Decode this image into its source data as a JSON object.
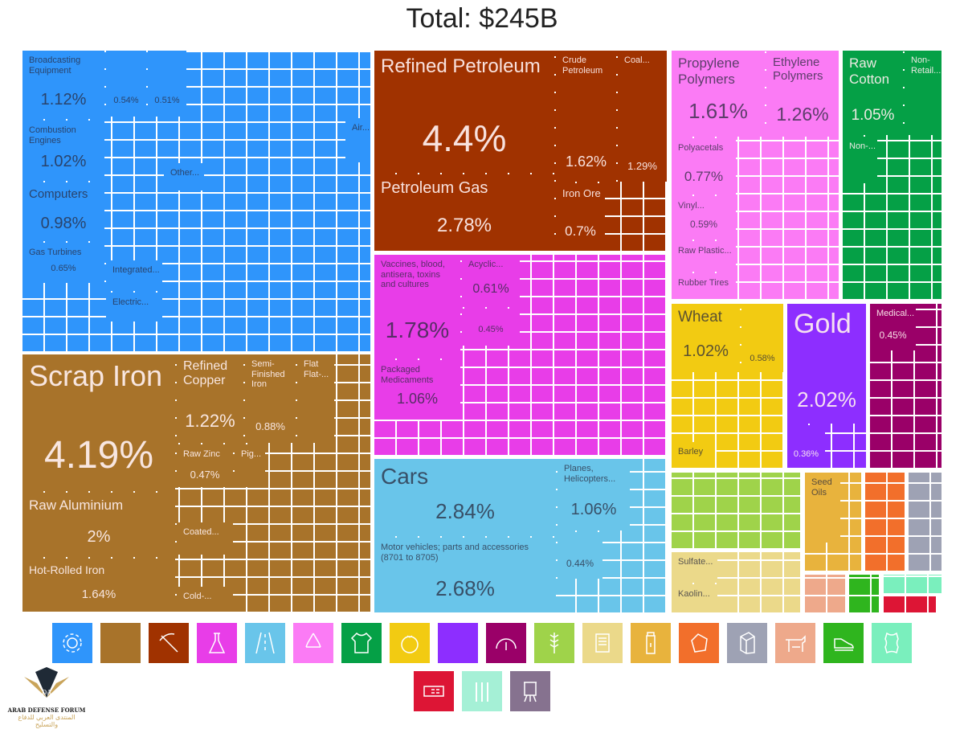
{
  "title": "Total: $245B",
  "chart_data": {
    "type": "treemap",
    "title": "Total: $245B",
    "sectors": [
      {
        "name": "machines",
        "color": "#2f95fb",
        "text": "dark",
        "tiles": [
          {
            "label": "Broadcasting Equipment",
            "pct": "1.12%"
          },
          {
            "label": "Combustion Engines",
            "pct": "1.02%"
          },
          {
            "label": "Computers",
            "pct": "0.98%"
          },
          {
            "label": "Gas Turbines",
            "pct": "0.65%"
          },
          {
            "label": "",
            "pct": "0.54%"
          },
          {
            "label": "",
            "pct": "0.51%"
          },
          {
            "label": "Air...",
            "pct": ""
          },
          {
            "label": "Other...",
            "pct": ""
          },
          {
            "label": "Integrated...",
            "pct": ""
          },
          {
            "label": "Electric...",
            "pct": ""
          }
        ]
      },
      {
        "name": "metals",
        "color": "#a8732a",
        "text": "light",
        "tiles": [
          {
            "label": "Scrap Iron",
            "pct": "4.19%"
          },
          {
            "label": "Raw Aluminium",
            "pct": "2%"
          },
          {
            "label": "Hot-Rolled Iron",
            "pct": "1.64%"
          },
          {
            "label": "Refined Copper",
            "pct": "1.22%"
          },
          {
            "label": "Semi-Finished Iron",
            "pct": "0.88%"
          },
          {
            "label": "Flat Flat-...",
            "pct": ""
          },
          {
            "label": "Raw Zinc",
            "pct": "0.47%"
          },
          {
            "label": "Pig...",
            "pct": ""
          },
          {
            "label": "Coated...",
            "pct": ""
          },
          {
            "label": "Cold-...",
            "pct": ""
          }
        ]
      },
      {
        "name": "mineral-products",
        "color": "#a03200",
        "text": "light",
        "tiles": [
          {
            "label": "Refined Petroleum",
            "pct": "4.4%"
          },
          {
            "label": "Petroleum Gas",
            "pct": "2.78%"
          },
          {
            "label": "Crude Petroleum",
            "pct": "1.62%"
          },
          {
            "label": "Coal...",
            "pct": "1.29%"
          },
          {
            "label": "Iron Ore",
            "pct": "0.7%"
          }
        ]
      },
      {
        "name": "chemical-products",
        "color": "#e83de8",
        "text": "dark",
        "tiles": [
          {
            "label": "Vaccines, blood, antisera, toxins and cultures",
            "pct": "1.78%"
          },
          {
            "label": "Packaged Medicaments",
            "pct": "1.06%"
          },
          {
            "label": "Acyclic...",
            "pct": "0.61%"
          },
          {
            "label": "",
            "pct": "0.45%"
          }
        ]
      },
      {
        "name": "transportation",
        "color": "#69c5ea",
        "text": "dark",
        "tiles": [
          {
            "label": "Cars",
            "pct": "2.84%"
          },
          {
            "label": "Motor vehicles; parts and accessories (8701 to 8705)",
            "pct": "2.68%"
          },
          {
            "label": "Planes, Helicopters...",
            "pct": "1.06%"
          },
          {
            "label": "",
            "pct": "0.44%"
          }
        ]
      },
      {
        "name": "plastics-and-rubbers",
        "color": "#fb7bf5",
        "text": "dark",
        "tiles": [
          {
            "label": "Propylene Polymers",
            "pct": "1.61%"
          },
          {
            "label": "Ethylene Polymers",
            "pct": "1.26%"
          },
          {
            "label": "Polyacetals",
            "pct": "0.77%"
          },
          {
            "label": "Vinyl...",
            "pct": "0.59%"
          },
          {
            "label": "Raw Plastic...",
            "pct": ""
          },
          {
            "label": "Rubber Tires",
            "pct": ""
          }
        ]
      },
      {
        "name": "textiles",
        "color": "#05a046",
        "text": "light",
        "tiles": [
          {
            "label": "Raw Cotton",
            "pct": "1.05%"
          },
          {
            "label": "Non-Retail...",
            "pct": ""
          },
          {
            "label": "Non-...",
            "pct": ""
          }
        ]
      },
      {
        "name": "vegetable-products",
        "color": "#f2cb12",
        "text": "dark",
        "tiles": [
          {
            "label": "Wheat",
            "pct": "1.02%"
          },
          {
            "label": "",
            "pct": "0.58%"
          },
          {
            "label": "Barley",
            "pct": ""
          }
        ]
      },
      {
        "name": "precious-metals",
        "color": "#8d2eff",
        "text": "light",
        "tiles": [
          {
            "label": "Gold",
            "pct": "2.02%"
          },
          {
            "label": "",
            "pct": "0.36%"
          }
        ]
      },
      {
        "name": "instruments",
        "color": "#9a0068",
        "text": "light",
        "tiles": [
          {
            "label": "Medical...",
            "pct": "0.45%"
          }
        ]
      },
      {
        "name": "foodstuffs",
        "color": "#9fd34a",
        "text": "dark",
        "tiles": []
      },
      {
        "name": "stone-and-glass",
        "color": "#ebd98a",
        "text": "dark",
        "tiles": [
          {
            "label": "Sulfate...",
            "pct": ""
          },
          {
            "label": "Kaolin...",
            "pct": ""
          }
        ]
      },
      {
        "name": "animal-and-vegetable-bi-products",
        "color": "#e8b33d",
        "text": "dark",
        "tiles": [
          {
            "label": "Seed Oils",
            "pct": ""
          }
        ]
      },
      {
        "name": "animal-products",
        "color": "#f26f2b",
        "text": "dark",
        "tiles": []
      },
      {
        "name": "paper-goods",
        "color": "#9ea2b4",
        "text": "dark",
        "tiles": []
      },
      {
        "name": "animal-hides",
        "color": "#eea98b",
        "text": "dark",
        "tiles": []
      },
      {
        "name": "footwear-and-headwear",
        "color": "#2fb51e",
        "text": "dark",
        "tiles": []
      },
      {
        "name": "misc-leather",
        "color": "#7aefbd",
        "text": "dark",
        "tiles": []
      },
      {
        "name": "weapons",
        "color": "#dd1535",
        "text": "light",
        "tiles": []
      }
    ]
  },
  "legend_icons": [
    {
      "name": "machines",
      "color": "#2f95fb"
    },
    {
      "name": "metals",
      "color": "#a8732a"
    },
    {
      "name": "mineral-products",
      "color": "#a03200"
    },
    {
      "name": "chemical-products",
      "color": "#e83de8"
    },
    {
      "name": "transportation",
      "color": "#69c5ea"
    },
    {
      "name": "plastics-and-rubbers",
      "color": "#fb7bf5"
    },
    {
      "name": "textiles",
      "color": "#05a046"
    },
    {
      "name": "vegetable-products",
      "color": "#f2cb12"
    },
    {
      "name": "precious-metals",
      "color": "#8d2eff"
    },
    {
      "name": "instruments",
      "color": "#9a0068"
    },
    {
      "name": "foodstuffs",
      "color": "#9fd34a"
    },
    {
      "name": "paper-goods-scroll",
      "color": "#ebd98a"
    },
    {
      "name": "animal-and-vegetable-bi-products",
      "color": "#e8b33d"
    },
    {
      "name": "stone-and-glass",
      "color": "#f26f2b"
    },
    {
      "name": "wood-products",
      "color": "#9ea2b4"
    },
    {
      "name": "animal-products",
      "color": "#eea98b"
    },
    {
      "name": "footwear-and-headwear",
      "color": "#2fb51e"
    },
    {
      "name": "animal-hides",
      "color": "#7aefbd"
    },
    {
      "name": "weapons",
      "color": "#dd1535"
    },
    {
      "name": "arms-ammunition",
      "color": "#a5f0d6"
    },
    {
      "name": "arts-and-antiques",
      "color": "#86728f"
    }
  ],
  "watermark": {
    "line1": "ARAB DEFENSE FORUM",
    "line2": "المنتدى العربي للدفاع والتسليح"
  }
}
